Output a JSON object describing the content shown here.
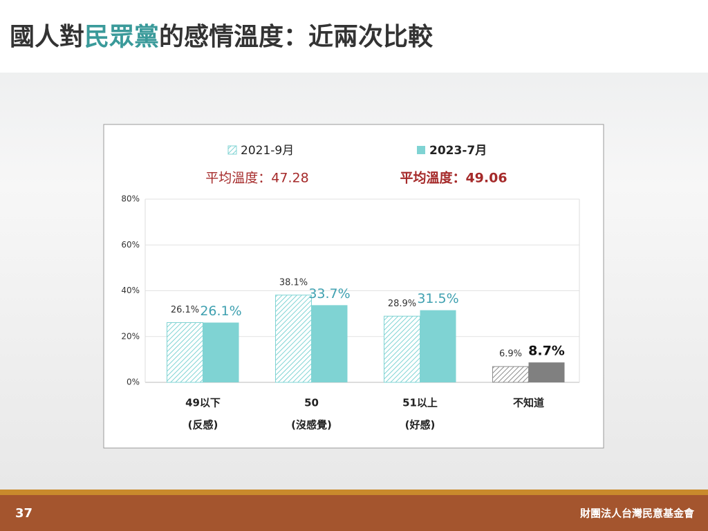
{
  "header": {
    "title_parts": [
      "國人對",
      "民眾黨",
      "的感情溫度：近兩次比較"
    ]
  },
  "chart_data": {
    "type": "bar",
    "categories": [
      "49以下",
      "50",
      "51以上",
      "不知道"
    ],
    "category_notes": [
      "(反感)",
      "(沒感覺)",
      "(好感)",
      null
    ],
    "series": [
      {
        "name": "2021-9月",
        "color": "#7fd3d3",
        "hatched": true,
        "average": "平均溫度：47.28",
        "values": [
          26.1,
          38.1,
          28.9,
          6.9
        ],
        "value_labels": [
          "26.1%",
          "38.1%",
          "28.9%",
          "6.9%"
        ],
        "point_colors": [
          "#7fd3d3",
          "#7fd3d3",
          "#7fd3d3",
          "#8c8c8c"
        ],
        "label_colors": [
          "#333333",
          "#333333",
          "#333333",
          "#333333"
        ]
      },
      {
        "name": "2023-7月",
        "color": "#7fd3d3",
        "hatched": false,
        "average": "平均溫度：49.06",
        "values": [
          26.1,
          33.7,
          31.5,
          8.7
        ],
        "value_labels": [
          "26.1%",
          "33.7%",
          "31.5%",
          "8.7%"
        ],
        "point_colors": [
          "#7fd3d3",
          "#7fd3d3",
          "#7fd3d3",
          "#808080"
        ],
        "label_colors": [
          "#3fa0b0",
          "#3fa0b0",
          "#3fa0b0",
          "#111111"
        ]
      }
    ],
    "ylim": [
      0,
      80
    ],
    "yticks": [
      {
        "value": 0,
        "label": "0%"
      },
      {
        "value": 20,
        "label": "20%"
      },
      {
        "value": 40,
        "label": "40%"
      },
      {
        "value": 60,
        "label": "60%"
      },
      {
        "value": 80,
        "label": "80%"
      }
    ],
    "grid": true
  },
  "footer": {
    "page": "37",
    "organization": "財團法人台灣民意基金會"
  }
}
